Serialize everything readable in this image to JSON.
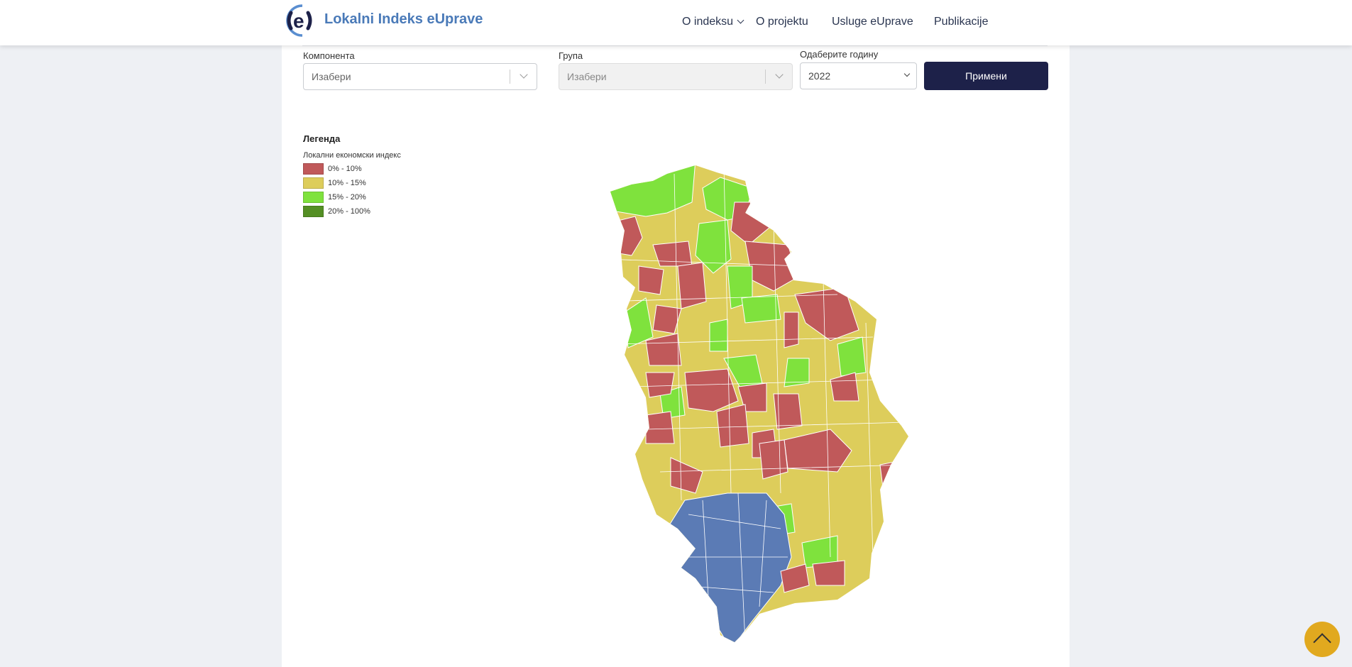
{
  "header": {
    "brand": "Lokalni Indeks eUprave",
    "nav": [
      {
        "label": "O indeksu",
        "has_dropdown": true
      },
      {
        "label": "O projektu"
      },
      {
        "label": "Usluge eUprave"
      },
      {
        "label": "Publikacije"
      }
    ]
  },
  "filters": {
    "component": {
      "label": "Компонента",
      "value": "Изабери"
    },
    "group": {
      "label": "Група",
      "value": "Изабери",
      "disabled": true
    },
    "year": {
      "label": "Одаберите годину",
      "value": "2022"
    },
    "apply_label": "Примени"
  },
  "legend": {
    "title": "Легенда",
    "subtitle": "Локални економски индекс",
    "items": [
      {
        "label": "0% - 10%",
        "color": "#c0595a"
      },
      {
        "label": "10% - 15%",
        "color": "#ddcd5b"
      },
      {
        "label": "15% - 20%",
        "color": "#7fe23d"
      },
      {
        "label": "20% - 100%",
        "color": "#548f24"
      }
    ]
  },
  "map": {
    "no_data_color": "#5b7bb5",
    "accent": "#1d2149",
    "scroll_top_color": "#e1a91f"
  }
}
